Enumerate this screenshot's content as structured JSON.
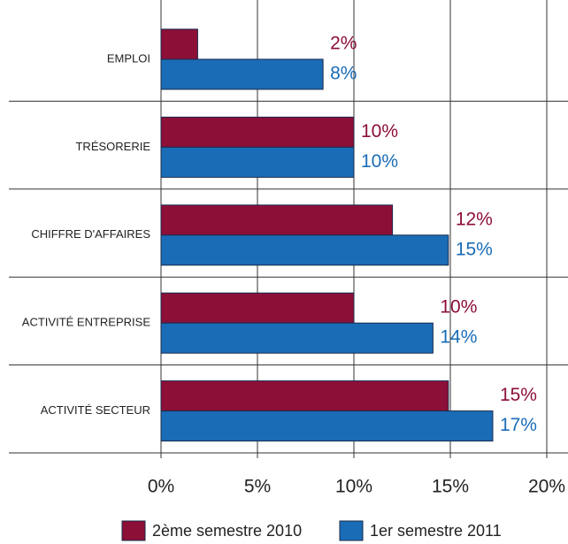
{
  "chart_data": {
    "type": "hbar",
    "categories": [
      "EMPLOI",
      "TRÉSORERIE",
      "CHIFFRE D'AFFAIRES",
      "ACTIVITÉ ENTREPRISE",
      "ACTIVITÉ SECTEUR"
    ],
    "series": [
      {
        "name": "2ème semestre 2010",
        "color": "#8c0f38",
        "values": [
          1.9,
          10,
          12,
          10,
          14.9
        ],
        "value_labels": [
          "2%",
          "10%",
          "12%",
          "10%",
          "15%"
        ]
      },
      {
        "name": "1er semestre 2011",
        "color": "#1b6cb6",
        "values": [
          8.4,
          10,
          14.9,
          14.1,
          17.2
        ],
        "value_labels": [
          "8%",
          "10%",
          "15%",
          "14%",
          "17%"
        ]
      }
    ],
    "xlim": [
      0,
      20
    ],
    "xticks": [
      {
        "value": 0,
        "label": "0%"
      },
      {
        "value": 5,
        "label": "5%"
      },
      {
        "value": 10,
        "label": "10%"
      },
      {
        "value": 15,
        "label": "15%"
      },
      {
        "value": 20,
        "label": "20%"
      }
    ],
    "grid": true
  }
}
